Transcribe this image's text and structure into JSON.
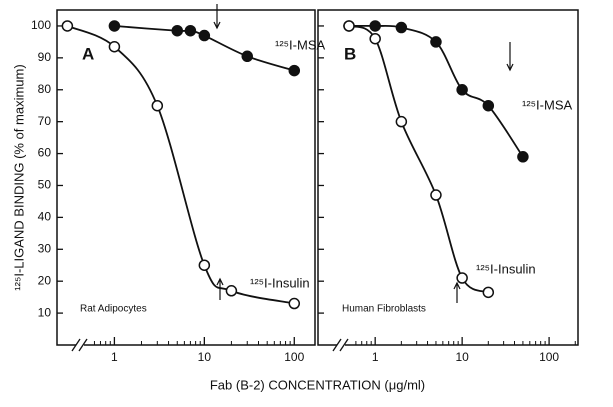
{
  "chart_data": [
    {
      "type": "scatter",
      "panel": "A",
      "note": "Rat Adipocytes",
      "ylabel": "¹²⁵I-LIGAND BINDING (% of maximum)",
      "xlabel": "Fab (B-2) CONCENTRATION (μg/ml)",
      "xscale": "log",
      "xlim": [
        0.23,
        170
      ],
      "xticks": [
        1,
        10,
        100
      ],
      "ylim": [
        0,
        105
      ],
      "yticks": [
        10,
        20,
        30,
        40,
        50,
        60,
        70,
        80,
        90,
        100
      ],
      "ytick_labels": true,
      "series": [
        {
          "name": "¹²⁵I-MSA",
          "color": "#111111",
          "x": [
            1,
            5,
            7,
            10,
            30,
            100
          ],
          "values": [
            100,
            98.5,
            98.5,
            97,
            90.5,
            86
          ]
        },
        {
          "name": "¹²⁵I-Insulin",
          "color": "#ffffff",
          "x": [
            0.3,
            1,
            3,
            10,
            20,
            100
          ],
          "values": [
            100,
            93.5,
            75,
            25,
            17,
            13
          ]
        }
      ]
    },
    {
      "type": "scatter",
      "panel": "B",
      "note": "Human Fibroblasts",
      "xscale": "log",
      "xlim": [
        0.22,
        215
      ],
      "xticks": [
        1,
        10,
        100
      ],
      "ylim": [
        0,
        105
      ],
      "yticks": [
        10,
        20,
        30,
        40,
        50,
        60,
        70,
        80,
        90,
        100
      ],
      "ytick_labels": false,
      "series": [
        {
          "name": "¹²⁵I-MSA",
          "color": "#111111",
          "x": [
            0.5,
            1,
            2,
            5,
            10,
            20,
            50
          ],
          "values": [
            100,
            100,
            99.5,
            95,
            80,
            75,
            59
          ]
        },
        {
          "name": "¹²⁵I-Insulin",
          "color": "#ffffff",
          "x": [
            0.5,
            1,
            2,
            5,
            10,
            20
          ],
          "values": [
            100,
            96,
            70,
            47,
            21,
            16.5
          ]
        }
      ]
    }
  ]
}
